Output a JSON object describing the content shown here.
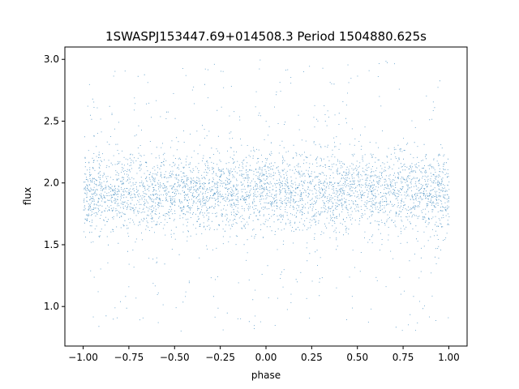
{
  "chart_data": {
    "type": "scatter",
    "title": "1SWASPJ153447.69+014508.3 Period 1504880.625s",
    "xlabel": "phase",
    "ylabel": "flux",
    "xlim": [
      -1.1,
      1.1
    ],
    "ylim": [
      0.68,
      3.1
    ],
    "xticks": [
      -1.0,
      -0.75,
      -0.5,
      -0.25,
      0.0,
      0.25,
      0.5,
      0.75,
      1.0
    ],
    "xtick_labels": [
      "−1.00",
      "−0.75",
      "−0.50",
      "−0.25",
      "0.00",
      "0.25",
      "0.50",
      "0.75",
      "1.00"
    ],
    "yticks": [
      1.0,
      1.5,
      2.0,
      2.5,
      3.0
    ],
    "ytick_labels": [
      "1.0",
      "1.5",
      "2.0",
      "2.5",
      "3.0"
    ],
    "grid": false,
    "marker_color": "#1f77b4",
    "series": [
      {
        "x_range": [
          -1.0,
          1.0
        ],
        "core_flux_range": [
          1.6,
          2.25
        ],
        "central_flux": 1.93,
        "scattered_flux_range": [
          0.8,
          3.0
        ]
      }
    ]
  }
}
